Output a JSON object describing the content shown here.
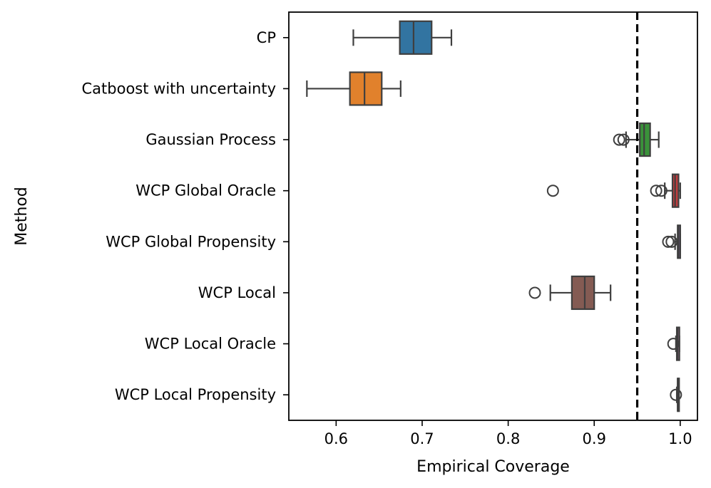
{
  "chart_data": {
    "type": "boxplot",
    "orientation": "horizontal",
    "xlabel": "Empirical Coverage",
    "ylabel": "Method",
    "xlim": [
      0.545,
      1.02
    ],
    "xticks": [
      0.6,
      0.7,
      0.8,
      0.9,
      1.0
    ],
    "xtick_labels": [
      "0.6",
      "0.7",
      "0.8",
      "0.9",
      "1.0"
    ],
    "reference_line": {
      "x": 0.95,
      "style": "dashed",
      "color": "#000000"
    },
    "series": [
      {
        "name": "CP",
        "color": "#3274a1",
        "whisker_low": 0.62,
        "q1": 0.674,
        "median": 0.69,
        "q3": 0.711,
        "whisker_high": 0.734,
        "outliers": []
      },
      {
        "name": "Catboost with uncertainty",
        "color": "#e1812c",
        "whisker_low": 0.566,
        "q1": 0.616,
        "median": 0.633,
        "q3": 0.653,
        "whisker_high": 0.675,
        "outliers": []
      },
      {
        "name": "Gaussian Process",
        "color": "#3a923a",
        "whisker_low": 0.937,
        "q1": 0.953,
        "median": 0.958,
        "q3": 0.965,
        "whisker_high": 0.975,
        "outliers": [
          0.929,
          0.934
        ]
      },
      {
        "name": "WCP Global Oracle",
        "color": "#c03d3e",
        "whisker_low": 0.982,
        "q1": 0.991,
        "median": 0.994,
        "q3": 0.998,
        "whisker_high": 1.0,
        "outliers": [
          0.852,
          0.972,
          0.978
        ]
      },
      {
        "name": "WCP Global Propensity",
        "color": "#9372b2",
        "whisker_low": 0.994,
        "q1": 0.997,
        "median": 0.998,
        "q3": 1.0,
        "whisker_high": 1.0,
        "outliers": [
          0.986,
          0.99
        ]
      },
      {
        "name": "WCP Local",
        "color": "#845b53",
        "whisker_low": 0.849,
        "q1": 0.874,
        "median": 0.889,
        "q3": 0.9,
        "whisker_high": 0.919,
        "outliers": [
          0.831
        ]
      },
      {
        "name": "WCP Local Oracle",
        "color": "#d684bd",
        "whisker_low": 0.995,
        "q1": 0.996,
        "median": 0.997,
        "q3": 0.999,
        "whisker_high": 0.999,
        "outliers": [
          0.992
        ]
      },
      {
        "name": "WCP Local Propensity",
        "color": "#7f7f7f",
        "whisker_low": 0.996,
        "q1": 0.997,
        "median": 0.997,
        "q3": 0.998,
        "whisker_high": 0.998,
        "outliers": [
          0.995
        ]
      }
    ]
  }
}
